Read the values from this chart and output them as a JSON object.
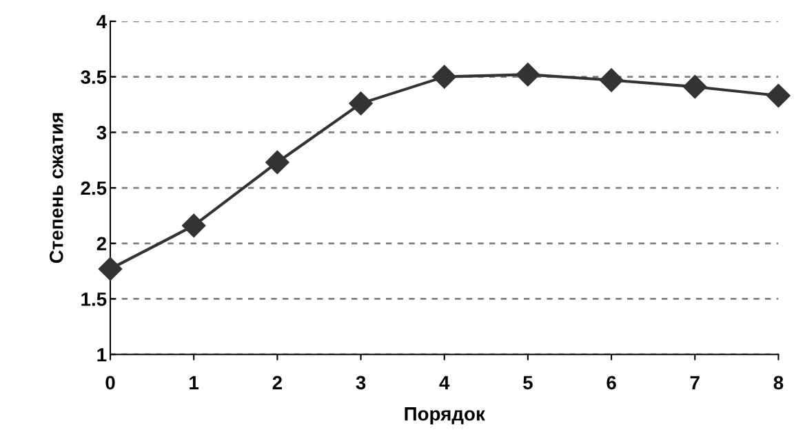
{
  "chart_data": {
    "type": "line",
    "xlabel": "Порядок",
    "ylabel": "Степень сжатия",
    "x": [
      0,
      1,
      2,
      3,
      4,
      5,
      6,
      7,
      8
    ],
    "series": [
      {
        "color": "#333333",
        "values": [
          1.77,
          2.16,
          2.73,
          3.26,
          3.5,
          3.52,
          3.47,
          3.41,
          3.33
        ]
      }
    ],
    "xlim": [
      0,
      8
    ],
    "xticks": [
      0,
      1,
      2,
      3,
      4,
      5,
      6,
      7,
      8
    ],
    "ylim": [
      1,
      4
    ],
    "yticks": [
      1,
      1.5,
      2,
      2.5,
      3,
      3.5,
      4
    ],
    "grid": "y",
    "marker": "diamond",
    "line_style": "solid"
  }
}
